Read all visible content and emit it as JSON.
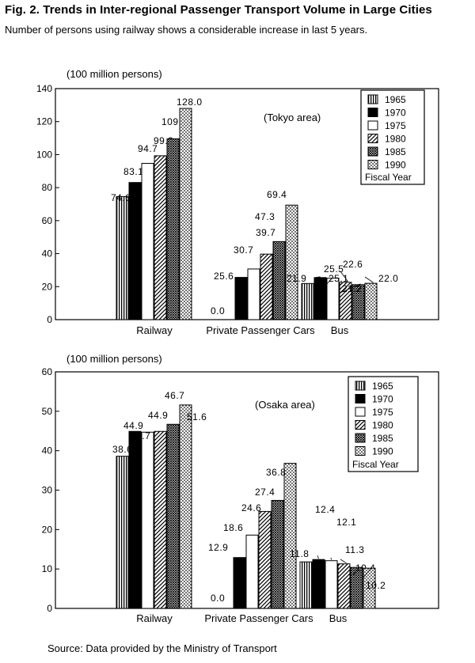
{
  "figure": {
    "title": "Fig. 2. Trends in Inter-regional Passenger Transport Volume in Large Cities",
    "subtitle": "Number of persons using railway shows a considerable increase in last 5 years.",
    "source": "Source: Data provided by the Ministry of Transport"
  },
  "chart_data": [
    {
      "type": "bar",
      "title": "(Tokyo area)",
      "ylabel": "(100 million persons)",
      "ylim": [
        0,
        140
      ],
      "yticks": [
        0,
        20,
        40,
        60,
        80,
        100,
        120,
        140
      ],
      "categories": [
        "Railway",
        "Private Passenger Cars",
        "Bus"
      ],
      "legend_title": "Fiscal Year",
      "legend_position": "top-right",
      "series": [
        {
          "name": "1965",
          "values": [
            74.6,
            0.0,
            21.9
          ],
          "labels": [
            "74.6",
            "0.0",
            "21.9"
          ]
        },
        {
          "name": "1970",
          "values": [
            83.1,
            25.6,
            25.5
          ],
          "labels": [
            "83.1",
            "25.6",
            "25.5"
          ]
        },
        {
          "name": "1975",
          "values": [
            94.7,
            30.7,
            25.1
          ],
          "labels": [
            "94.7",
            "30.7",
            "25.1"
          ]
        },
        {
          "name": "1980",
          "values": [
            99.3,
            39.7,
            22.6
          ],
          "labels": [
            "99.3",
            "39.7",
            "22.6"
          ]
        },
        {
          "name": "1985",
          "values": [
            109.6,
            47.3,
            21.2
          ],
          "labels": [
            "109.6",
            "47.3",
            "21.2"
          ]
        },
        {
          "name": "1990",
          "values": [
            128.0,
            69.4,
            22.0
          ],
          "labels": [
            "128.0",
            "69.4",
            "22.0"
          ]
        }
      ]
    },
    {
      "type": "bar",
      "title": "(Osaka area)",
      "ylabel": "(100 million persons)",
      "ylim": [
        0,
        60
      ],
      "yticks": [
        0,
        10,
        20,
        30,
        40,
        50,
        60
      ],
      "categories": [
        "Railway",
        "Private Passenger Cars",
        "Bus"
      ],
      "legend_title": "Fiscal Year",
      "legend_position": "top-right",
      "series": [
        {
          "name": "1965",
          "values": [
            38.6,
            0.0,
            11.8
          ],
          "labels": [
            "38.6",
            "0.0",
            "11.8"
          ]
        },
        {
          "name": "1970",
          "values": [
            44.9,
            12.9,
            12.4
          ],
          "labels": [
            "44.9",
            "12.9",
            "12.4"
          ]
        },
        {
          "name": "1975",
          "values": [
            44.7,
            18.6,
            12.1
          ],
          "labels": [
            "44.7",
            "18.6",
            "12.1"
          ]
        },
        {
          "name": "1980",
          "values": [
            44.9,
            24.6,
            11.3
          ],
          "labels": [
            "44.9",
            "24.6",
            "11.3"
          ]
        },
        {
          "name": "1985",
          "values": [
            46.7,
            27.4,
            10.4
          ],
          "labels": [
            "46.7",
            "27.4",
            "10.4"
          ]
        },
        {
          "name": "1990",
          "values": [
            51.6,
            36.8,
            10.2
          ],
          "labels": [
            "51.6",
            "36.8",
            "10.2"
          ]
        }
      ]
    }
  ]
}
